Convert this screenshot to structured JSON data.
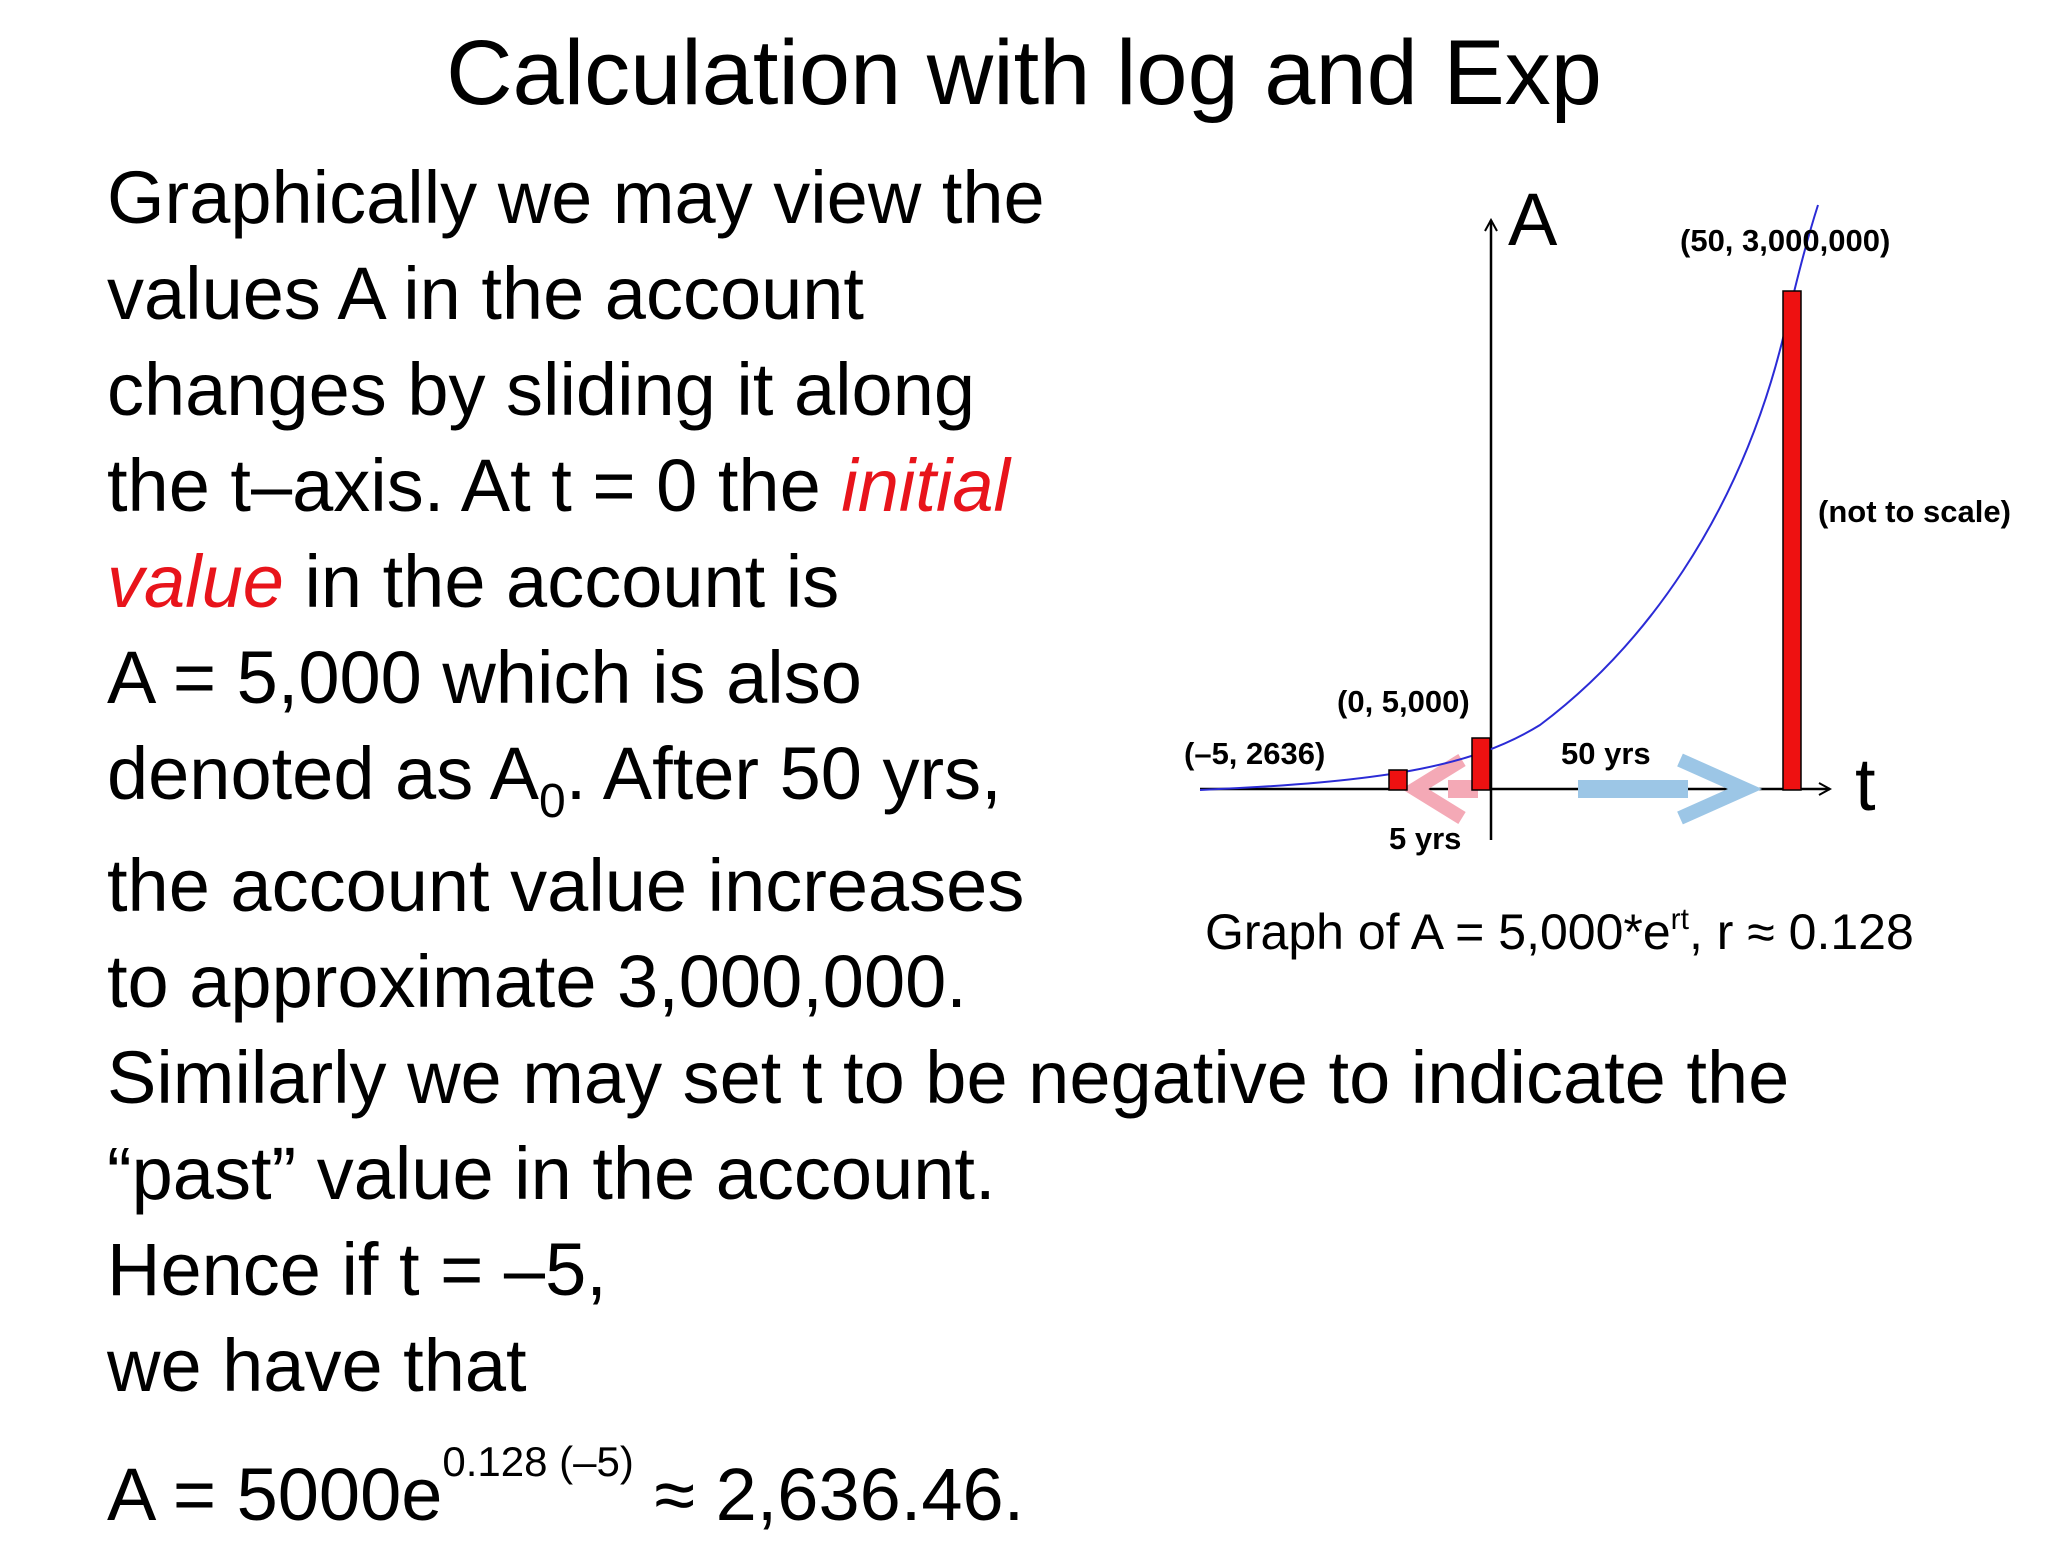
{
  "title": "Calculation with log and Exp",
  "paragraph": {
    "line1": "Graphically we may view the",
    "line2": "values A in the account",
    "line3": "changes by sliding it along",
    "line4_pre": "the t–axis. At t = 0 the ",
    "line4_red": "initial",
    "line5_red": "value",
    "line5_post": " in the account is",
    "line6": "A = 5,000 which is also",
    "line7_pre": "denoted as A",
    "line7_sub": "0",
    "line7_post": ". After 50 yrs,",
    "line8": "the account value increases",
    "line9": "to approximate 3,000,000.",
    "line10": "Similarly we may set t to be negative to indicate the",
    "line11": "“past” value in the account.",
    "line12": "Hence if t = –5,",
    "line13": "we have that",
    "line14_pre": "A = 5000e",
    "line14_sup": "0.128 (–5)",
    "line14_post": " ≈ 2,636.46."
  },
  "diagram": {
    "y_axis_label": "A",
    "x_axis_label": "t",
    "point_past_label": "(–5, 2636)",
    "point_initial_label": "(0, 5,000)",
    "point_future_label": "(50, 3,000,000)",
    "not_to_scale_label": "(not to scale)",
    "span_50_label": "50 yrs",
    "span_5_label": "5 yrs",
    "caption_pre": "Graph of A =  5,000*e",
    "caption_sup": "rt",
    "caption_post": ", r ≈ 0.128",
    "colors": {
      "curve": "#2b2bd6",
      "bars": "#ee1111",
      "arrow_right": "#9cc6e6",
      "arrow_left": "#f4a9b6"
    }
  }
}
